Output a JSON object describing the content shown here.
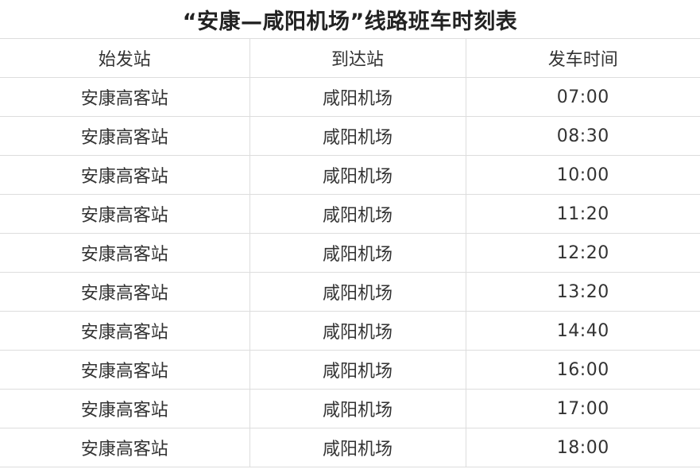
{
  "title": "“安康—咸阳机场”线路班车时刻表",
  "table": {
    "headers": [
      "始发站",
      "到达站",
      "发车时间"
    ],
    "rows": [
      {
        "from": "安康高客站",
        "to": "咸阳机场",
        "time": "07:00"
      },
      {
        "from": "安康高客站",
        "to": "咸阳机场",
        "time": "08:30"
      },
      {
        "from": "安康高客站",
        "to": "咸阳机场",
        "time": "10:00"
      },
      {
        "from": "安康高客站",
        "to": "咸阳机场",
        "time": "11:20"
      },
      {
        "from": "安康高客站",
        "to": "咸阳机场",
        "time": "12:20"
      },
      {
        "from": "安康高客站",
        "to": "咸阳机场",
        "time": "13:20"
      },
      {
        "from": "安康高客站",
        "to": "咸阳机场",
        "time": "14:40"
      },
      {
        "from": "安康高客站",
        "to": "咸阳机场",
        "time": "16:00"
      },
      {
        "from": "安康高客站",
        "to": "咸阳机场",
        "time": "17:00"
      },
      {
        "from": "安康高客站",
        "to": "咸阳机场",
        "time": "18:00"
      }
    ]
  },
  "colors": {
    "background": "#ffffff",
    "border": "#dddddd",
    "text": "#333333",
    "title_text": "#222222"
  }
}
